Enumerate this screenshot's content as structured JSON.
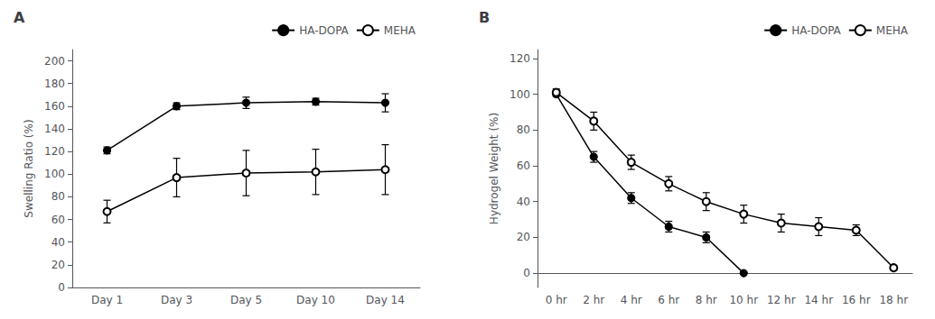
{
  "chart_data": [
    {
      "type": "line",
      "title": "A",
      "ylabel": "Swelling Ratio (%)",
      "categories": [
        "Day 1",
        "Day 3",
        "Day 5",
        "Day 10",
        "Day 14"
      ],
      "ylim": [
        0,
        210
      ],
      "yticks": [
        0,
        20,
        40,
        60,
        80,
        100,
        120,
        140,
        160,
        180,
        200
      ],
      "grid": false,
      "legend": "upper right",
      "series": [
        {
          "name": "HA-DOPA",
          "color": "#000000",
          "marker": "circle",
          "values": [
            121,
            160,
            163,
            164,
            163
          ],
          "yerr": [
            3,
            3,
            5,
            3,
            8
          ]
        },
        {
          "name": "MEHA",
          "color": "#000000",
          "marker": "emptyCircle",
          "values": [
            67,
            97,
            101,
            102,
            104
          ],
          "yerr": [
            10,
            17,
            20,
            20,
            22
          ]
        }
      ]
    },
    {
      "type": "line",
      "title": "B",
      "ylabel": "Hydrogel Weight (%)",
      "categories": [
        "0 hr",
        "2 hr",
        "4 hr",
        "6 hr",
        "8 hr",
        "10 hr",
        "12 hr",
        "14 hr",
        "16 hr",
        "18 hr"
      ],
      "ylim": [
        -8,
        125
      ],
      "yticks": [
        0,
        20,
        40,
        60,
        80,
        100,
        120
      ],
      "grid": false,
      "legend": "upper right",
      "series": [
        {
          "name": "HA-DOPA",
          "color": "#000000",
          "marker": "circle",
          "values": [
            100,
            65,
            42,
            26,
            20,
            0,
            null,
            null,
            null,
            null
          ],
          "yerr": [
            0,
            3,
            3,
            3,
            3,
            0,
            null,
            null,
            null,
            null
          ]
        },
        {
          "name": "MEHA",
          "color": "#000000",
          "marker": "emptyCircle",
          "values": [
            101,
            85,
            62,
            50,
            40,
            33,
            28,
            26,
            24,
            3
          ],
          "yerr": [
            2,
            5,
            4,
            4,
            5,
            5,
            5,
            5,
            3,
            0
          ]
        }
      ]
    }
  ]
}
